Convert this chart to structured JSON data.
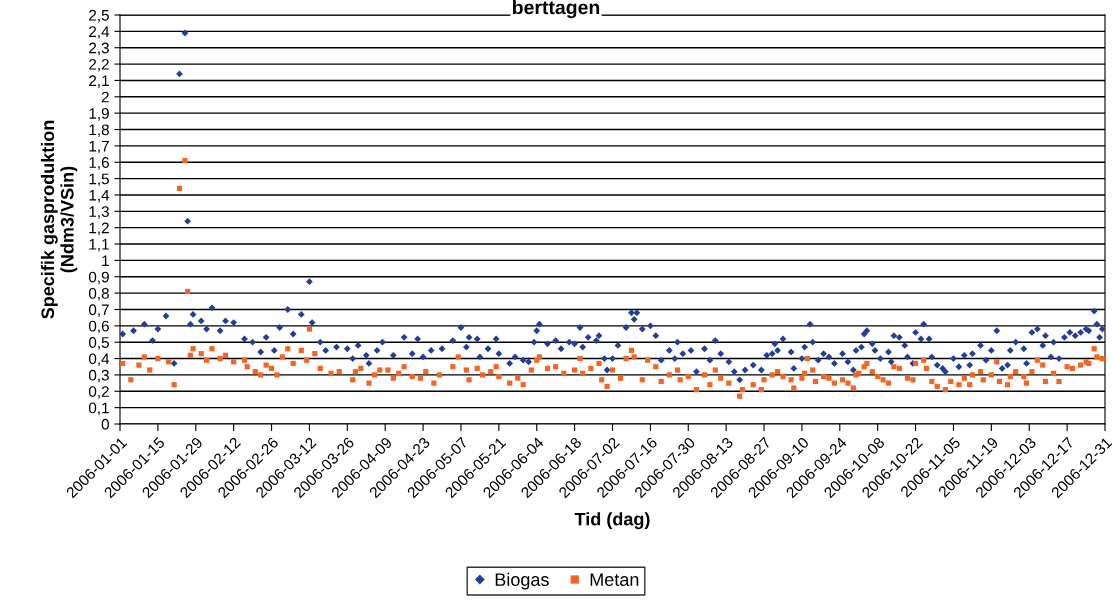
{
  "chart_data": {
    "type": "scatter",
    "title": "berttagen",
    "xlabel": "Tid (dag)",
    "ylabel": "Specifik gasproduktion\n(Ndm3/VSin)",
    "xlim": [
      "2006-01-01",
      "2006-12-31"
    ],
    "xticks": [
      "2006-01-01",
      "2006-01-15",
      "2006-01-29",
      "2006-02-12",
      "2006-02-26",
      "2006-03-12",
      "2006-03-26",
      "2006-04-09",
      "2006-04-23",
      "2006-05-07",
      "2006-05-21",
      "2006-06-04",
      "2006-06-18",
      "2006-07-02",
      "2006-07-16",
      "2006-07-30",
      "2006-08-13",
      "2006-08-27",
      "2006-09-10",
      "2006-09-24",
      "2006-10-08",
      "2006-10-22",
      "2006-11-05",
      "2006-11-19",
      "2006-12-03",
      "2006-12-17",
      "2006-12-31"
    ],
    "ylim": [
      0,
      2.5
    ],
    "yticks": [
      0,
      {
        "value": 0.1,
        "label": "0,1"
      },
      {
        "value": 0.2,
        "label": "0,2"
      },
      {
        "value": 0.3,
        "label": "0,3"
      },
      {
        "value": 0.4,
        "label": "0,4"
      },
      {
        "value": 0.5,
        "label": "0,5"
      },
      {
        "value": 0.6,
        "label": "0,6"
      },
      {
        "value": 0.7,
        "label": "0,7"
      },
      {
        "value": 0.8,
        "label": "0,8"
      },
      {
        "value": 0.9,
        "label": "0,9"
      },
      1,
      {
        "value": 1.1,
        "label": "1,1"
      },
      {
        "value": 1.2,
        "label": "1,2"
      },
      {
        "value": 1.3,
        "label": "1,3"
      },
      {
        "value": 1.4,
        "label": "1,4"
      },
      {
        "value": 1.5,
        "label": "1,5"
      },
      {
        "value": 1.6,
        "label": "1,6"
      },
      {
        "value": 1.7,
        "label": "1,7"
      },
      {
        "value": 1.8,
        "label": "1,8"
      },
      {
        "value": 1.9,
        "label": "1,9"
      },
      2,
      {
        "value": 2.1,
        "label": "2,1"
      },
      {
        "value": 2.2,
        "label": "2,2"
      },
      {
        "value": 2.3,
        "label": "2,3"
      },
      {
        "value": 2.4,
        "label": "2,4"
      },
      {
        "value": 2.5,
        "label": "2,5"
      }
    ],
    "grid": "y",
    "legend": "bottom",
    "series": [
      {
        "name": "Biogas",
        "color": "#233e99",
        "marker": "diamond",
        "x": [
          "2006-01-02",
          "2006-01-06",
          "2006-01-10",
          "2006-01-13",
          "2006-01-15",
          "2006-01-18",
          "2006-01-21",
          "2006-01-23",
          "2006-01-25",
          "2006-01-26",
          "2006-01-27",
          "2006-01-28",
          "2006-01-31",
          "2006-02-02",
          "2006-02-04",
          "2006-02-07",
          "2006-02-09",
          "2006-02-12",
          "2006-02-16",
          "2006-02-19",
          "2006-02-22",
          "2006-02-24",
          "2006-02-27",
          "2006-03-01",
          "2006-03-04",
          "2006-03-06",
          "2006-03-09",
          "2006-03-12",
          "2006-03-13",
          "2006-03-16",
          "2006-03-18",
          "2006-03-22",
          "2006-03-26",
          "2006-03-28",
          "2006-03-30",
          "2006-04-02",
          "2006-04-03",
          "2006-04-06",
          "2006-04-08",
          "2006-04-12",
          "2006-04-16",
          "2006-04-19",
          "2006-04-21",
          "2006-04-23",
          "2006-04-26",
          "2006-04-30",
          "2006-05-04",
          "2006-05-07",
          "2006-05-09",
          "2006-05-10",
          "2006-05-13",
          "2006-05-14",
          "2006-05-17",
          "2006-05-20",
          "2006-05-21",
          "2006-05-25",
          "2006-05-27",
          "2006-05-30",
          "2006-06-01",
          "2006-06-03",
          "2006-06-04",
          "2006-06-05",
          "2006-06-08",
          "2006-06-11",
          "2006-06-13",
          "2006-06-16",
          "2006-06-18",
          "2006-06-20",
          "2006-06-21",
          "2006-06-23",
          "2006-06-26",
          "2006-06-27",
          "2006-06-29",
          "2006-06-30",
          "2006-07-02",
          "2006-07-04",
          "2006-07-07",
          "2006-07-09",
          "2006-07-10",
          "2006-07-11",
          "2006-07-13",
          "2006-07-16",
          "2006-07-18",
          "2006-07-20",
          "2006-07-23",
          "2006-07-25",
          "2006-07-26",
          "2006-07-28",
          "2006-07-31",
          "2006-08-02",
          "2006-08-05",
          "2006-08-07",
          "2006-08-09",
          "2006-08-11",
          "2006-08-14",
          "2006-08-16",
          "2006-08-18",
          "2006-08-20",
          "2006-08-23",
          "2006-08-26",
          "2006-08-28",
          "2006-08-30",
          "2006-08-31",
          "2006-09-01",
          "2006-09-03",
          "2006-09-06",
          "2006-09-07",
          "2006-09-10",
          "2006-09-11",
          "2006-09-13",
          "2006-09-14",
          "2006-09-16",
          "2006-09-18",
          "2006-09-20",
          "2006-09-22",
          "2006-09-25",
          "2006-09-27",
          "2006-09-29",
          "2006-09-30",
          "2006-10-02",
          "2006-10-03",
          "2006-10-04",
          "2006-10-06",
          "2006-10-07",
          "2006-10-09",
          "2006-10-12",
          "2006-10-13",
          "2006-10-14",
          "2006-10-16",
          "2006-10-18",
          "2006-10-19",
          "2006-10-21",
          "2006-10-22",
          "2006-10-24",
          "2006-10-25",
          "2006-10-27",
          "2006-10-28",
          "2006-10-30",
          "2006-11-01",
          "2006-11-02",
          "2006-11-05",
          "2006-11-07",
          "2006-11-09",
          "2006-11-11",
          "2006-11-12",
          "2006-11-15",
          "2006-11-17",
          "2006-11-19",
          "2006-11-21",
          "2006-11-23",
          "2006-11-25",
          "2006-11-26",
          "2006-11-28",
          "2006-12-01",
          "2006-12-02",
          "2006-12-04",
          "2006-12-06",
          "2006-12-08",
          "2006-12-09",
          "2006-12-11",
          "2006-12-12",
          "2006-12-14",
          "2006-12-16",
          "2006-12-18",
          "2006-12-20",
          "2006-12-22",
          "2006-12-24",
          "2006-12-25",
          "2006-12-27",
          "2006-12-28",
          "2006-12-29",
          "2006-12-30"
        ],
        "values": [
          0.55,
          0.57,
          0.61,
          0.51,
          0.58,
          0.66,
          0.37,
          2.14,
          2.39,
          1.24,
          0.61,
          0.67,
          0.63,
          0.58,
          0.71,
          0.57,
          0.63,
          0.62,
          0.52,
          0.5,
          0.44,
          0.53,
          0.45,
          0.59,
          0.7,
          0.55,
          0.67,
          0.87,
          0.62,
          0.5,
          0.45,
          0.47,
          0.46,
          0.4,
          0.48,
          0.42,
          0.37,
          0.45,
          0.5,
          0.42,
          0.53,
          0.43,
          0.52,
          0.41,
          0.45,
          0.46,
          0.51,
          0.59,
          0.47,
          0.53,
          0.52,
          0.41,
          0.46,
          0.52,
          0.43,
          0.37,
          0.41,
          0.39,
          0.38,
          0.5,
          0.57,
          0.61,
          0.49,
          0.51,
          0.46,
          0.5,
          0.49,
          0.59,
          0.47,
          0.53,
          0.51,
          0.54,
          0.4,
          0.33,
          0.4,
          0.48,
          0.59,
          0.68,
          0.64,
          0.68,
          0.58,
          0.6,
          0.54,
          0.39,
          0.45,
          0.4,
          0.5,
          0.43,
          0.45,
          0.32,
          0.46,
          0.39,
          0.51,
          0.43,
          0.38,
          0.32,
          0.27,
          0.33,
          0.36,
          0.33,
          0.42,
          0.43,
          0.49,
          0.45,
          0.52,
          0.44,
          0.34,
          0.4,
          0.47,
          0.61,
          0.5,
          0.39,
          0.43,
          0.41,
          0.37,
          0.43,
          0.38,
          0.33,
          0.45,
          0.47,
          0.55,
          0.57,
          0.49,
          0.45,
          0.4,
          0.44,
          0.38,
          0.54,
          0.53,
          0.48,
          0.41,
          0.37,
          0.56,
          0.52,
          0.61,
          0.52,
          0.41,
          0.36,
          0.34,
          0.32,
          0.4,
          0.35,
          0.42,
          0.36,
          0.43,
          0.48,
          0.39,
          0.45,
          0.57,
          0.34,
          0.36,
          0.45,
          0.5,
          0.46,
          0.37,
          0.56,
          0.58,
          0.48,
          0.54,
          0.41,
          0.5,
          0.4,
          0.53,
          0.56,
          0.54,
          0.56,
          0.58,
          0.57,
          0.69,
          0.61,
          0.53,
          0.58
        ]
      },
      {
        "name": "Metan",
        "color": "#f26522",
        "marker": "square",
        "x": [
          "2006-01-02",
          "2006-01-05",
          "2006-01-08",
          "2006-01-10",
          "2006-01-12",
          "2006-01-15",
          "2006-01-19",
          "2006-01-21",
          "2006-01-23",
          "2006-01-25",
          "2006-01-26",
          "2006-01-27",
          "2006-01-28",
          "2006-01-31",
          "2006-02-02",
          "2006-02-04",
          "2006-02-07",
          "2006-02-09",
          "2006-02-12",
          "2006-02-16",
          "2006-02-17",
          "2006-02-20",
          "2006-02-22",
          "2006-02-24",
          "2006-02-26",
          "2006-02-28",
          "2006-03-02",
          "2006-03-04",
          "2006-03-06",
          "2006-03-09",
          "2006-03-11",
          "2006-03-12",
          "2006-03-14",
          "2006-03-16",
          "2006-03-20",
          "2006-03-23",
          "2006-03-28",
          "2006-03-29",
          "2006-03-31",
          "2006-04-03",
          "2006-04-05",
          "2006-04-07",
          "2006-04-10",
          "2006-04-12",
          "2006-04-14",
          "2006-04-16",
          "2006-04-19",
          "2006-04-22",
          "2006-04-24",
          "2006-04-27",
          "2006-04-29",
          "2006-05-04",
          "2006-05-06",
          "2006-05-09",
          "2006-05-10",
          "2006-05-13",
          "2006-05-15",
          "2006-05-18",
          "2006-05-20",
          "2006-05-21",
          "2006-05-25",
          "2006-05-28",
          "2006-05-30",
          "2006-06-02",
          "2006-06-04",
          "2006-06-05",
          "2006-06-08",
          "2006-06-11",
          "2006-06-14",
          "2006-06-18",
          "2006-06-20",
          "2006-06-21",
          "2006-06-24",
          "2006-06-27",
          "2006-06-28",
          "2006-06-30",
          "2006-07-02",
          "2006-07-05",
          "2006-07-07",
          "2006-07-09",
          "2006-07-10",
          "2006-07-13",
          "2006-07-15",
          "2006-07-18",
          "2006-07-20",
          "2006-07-23",
          "2006-07-26",
          "2006-07-27",
          "2006-07-30",
          "2006-08-02",
          "2006-08-05",
          "2006-08-07",
          "2006-08-09",
          "2006-08-11",
          "2006-08-14",
          "2006-08-18",
          "2006-08-19",
          "2006-08-23",
          "2006-08-26",
          "2006-08-27",
          "2006-08-30",
          "2006-09-01",
          "2006-09-03",
          "2006-09-06",
          "2006-09-07",
          "2006-09-10",
          "2006-09-11",
          "2006-09-12",
          "2006-09-14",
          "2006-09-15",
          "2006-09-18",
          "2006-09-20",
          "2006-09-22",
          "2006-09-25",
          "2006-09-27",
          "2006-09-29",
          "2006-09-30",
          "2006-10-01",
          "2006-10-03",
          "2006-10-04",
          "2006-10-06",
          "2006-10-08",
          "2006-10-10",
          "2006-10-12",
          "2006-10-14",
          "2006-10-16",
          "2006-10-19",
          "2006-10-21",
          "2006-10-22",
          "2006-10-25",
          "2006-10-26",
          "2006-10-28",
          "2006-10-30",
          "2006-11-02",
          "2006-11-04",
          "2006-11-07",
          "2006-11-09",
          "2006-11-11",
          "2006-11-12",
          "2006-11-15",
          "2006-11-16",
          "2006-11-19",
          "2006-11-21",
          "2006-11-22",
          "2006-11-25",
          "2006-11-26",
          "2006-11-28",
          "2006-12-01",
          "2006-12-02",
          "2006-12-04",
          "2006-12-06",
          "2006-12-08",
          "2006-12-09",
          "2006-12-12",
          "2006-12-14",
          "2006-12-17",
          "2006-12-19",
          "2006-12-22",
          "2006-12-24",
          "2006-12-25",
          "2006-12-27",
          "2006-12-28",
          "2006-12-30"
        ],
        "values": [
          0.37,
          0.27,
          0.36,
          0.41,
          0.33,
          0.4,
          0.38,
          0.24,
          1.44,
          1.61,
          0.81,
          0.42,
          0.46,
          0.43,
          0.39,
          0.46,
          0.4,
          0.42,
          0.38,
          0.39,
          0.35,
          0.32,
          0.3,
          0.36,
          0.34,
          0.3,
          0.41,
          0.46,
          0.37,
          0.45,
          0.39,
          0.58,
          0.43,
          0.34,
          0.31,
          0.32,
          0.27,
          0.32,
          0.34,
          0.25,
          0.3,
          0.33,
          0.33,
          0.28,
          0.31,
          0.35,
          0.29,
          0.28,
          0.32,
          0.25,
          0.3,
          0.35,
          0.41,
          0.33,
          0.27,
          0.34,
          0.3,
          0.32,
          0.35,
          0.29,
          0.25,
          0.28,
          0.24,
          0.33,
          0.39,
          0.41,
          0.34,
          0.35,
          0.31,
          0.33,
          0.4,
          0.31,
          0.34,
          0.37,
          0.27,
          0.23,
          0.33,
          0.28,
          0.4,
          0.45,
          0.41,
          0.27,
          0.39,
          0.35,
          0.26,
          0.3,
          0.33,
          0.27,
          0.29,
          0.21,
          0.3,
          0.24,
          0.33,
          0.28,
          0.25,
          0.17,
          0.21,
          0.24,
          0.21,
          0.27,
          0.3,
          0.32,
          0.29,
          0.27,
          0.22,
          0.28,
          0.31,
          0.4,
          0.33,
          0.26,
          0.29,
          0.28,
          0.25,
          0.27,
          0.25,
          0.22,
          0.3,
          0.31,
          0.35,
          0.37,
          0.32,
          0.29,
          0.27,
          0.25,
          0.35,
          0.34,
          0.28,
          0.27,
          0.37,
          0.39,
          0.34,
          0.26,
          0.23,
          0.21,
          0.26,
          0.24,
          0.28,
          0.24,
          0.3,
          0.32,
          0.27,
          0.3,
          0.38,
          0.26,
          0.24,
          0.29,
          0.32,
          0.29,
          0.25,
          0.32,
          0.39,
          0.36,
          0.26,
          0.31,
          0.26,
          0.35,
          0.34,
          0.36,
          0.38,
          0.37,
          0.46,
          0.41,
          0.4
        ]
      }
    ]
  }
}
